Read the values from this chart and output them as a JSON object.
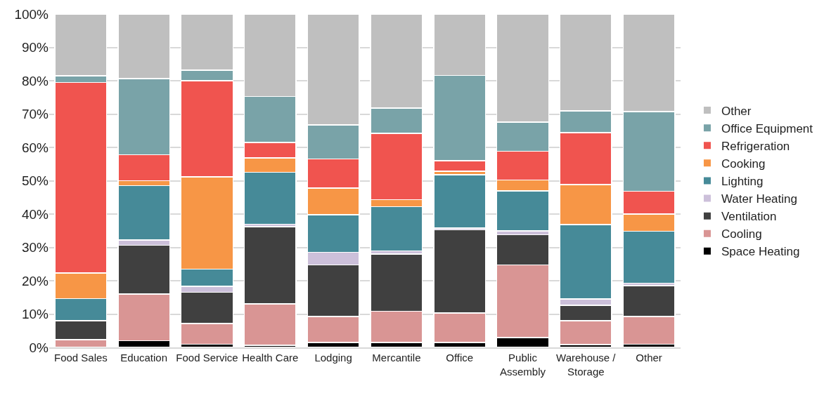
{
  "chart_data": {
    "type": "bar",
    "stacked": true,
    "categories": [
      "Food Sales",
      "Education",
      "Food Service",
      "Health Care",
      "Lodging",
      "Mercantile",
      "Office",
      "Public Assembly",
      "Warehouse / Storage",
      "Other"
    ],
    "series": [
      {
        "name": "Space Heating",
        "color": "#000000",
        "values": [
          0,
          2,
          1,
          0.6,
          1.5,
          1.5,
          1.5,
          3,
          0.8,
          1
        ]
      },
      {
        "name": "Cooling",
        "color": "#d99594",
        "values": [
          2.3,
          14,
          6.2,
          12.5,
          7.8,
          9.3,
          8.8,
          21.7,
          7.2,
          8.3
        ]
      },
      {
        "name": "Ventilation",
        "color": "#404040",
        "values": [
          5.7,
          14.6,
          9.3,
          23.1,
          15.4,
          17.2,
          25,
          9.1,
          4.6,
          9.2
        ]
      },
      {
        "name": "Water Heating",
        "color": "#ccc0da",
        "values": [
          0,
          1.6,
          1.8,
          0.8,
          3.8,
          1,
          0.5,
          1.1,
          1.9,
          0.8
        ]
      },
      {
        "name": "Lighting",
        "color": "#468a98",
        "values": [
          6.6,
          16.3,
          5.2,
          15.5,
          11.3,
          13.2,
          16,
          12.1,
          22.3,
          15.5
        ]
      },
      {
        "name": "Cooking",
        "color": "#f79646",
        "values": [
          7.7,
          1.5,
          27.7,
          4.3,
          8,
          2.1,
          1,
          3.2,
          12,
          5.2
        ]
      },
      {
        "name": "Refrigeration",
        "color": "#f0544f",
        "values": [
          57.2,
          7.8,
          28.8,
          4.7,
          8.7,
          19.9,
          3.2,
          8.6,
          15.6,
          6.8
        ]
      },
      {
        "name": "Office Equipment",
        "color": "#79a3a8",
        "values": [
          2,
          22.8,
          3.2,
          13.8,
          10.2,
          7.6,
          25.6,
          8.8,
          6.6,
          23.9
        ]
      },
      {
        "name": "Other",
        "color": "#bfbfbf",
        "values": [
          18.5,
          19.4,
          16.8,
          24.7,
          33.3,
          28.2,
          18.4,
          32.4,
          29,
          29.3
        ]
      }
    ],
    "ylim": [
      0,
      100
    ],
    "yticks": [
      {
        "value": 0,
        "label": "0%"
      },
      {
        "value": 10,
        "label": "10%"
      },
      {
        "value": 20,
        "label": "20%"
      },
      {
        "value": 30,
        "label": "30%"
      },
      {
        "value": 40,
        "label": "40%"
      },
      {
        "value": 50,
        "label": "50%"
      },
      {
        "value": 60,
        "label": "60%"
      },
      {
        "value": 70,
        "label": "70%"
      },
      {
        "value": 80,
        "label": "80%"
      },
      {
        "value": 90,
        "label": "90%"
      },
      {
        "value": 100,
        "label": "100%"
      }
    ],
    "grid": "y",
    "legend": "right"
  }
}
